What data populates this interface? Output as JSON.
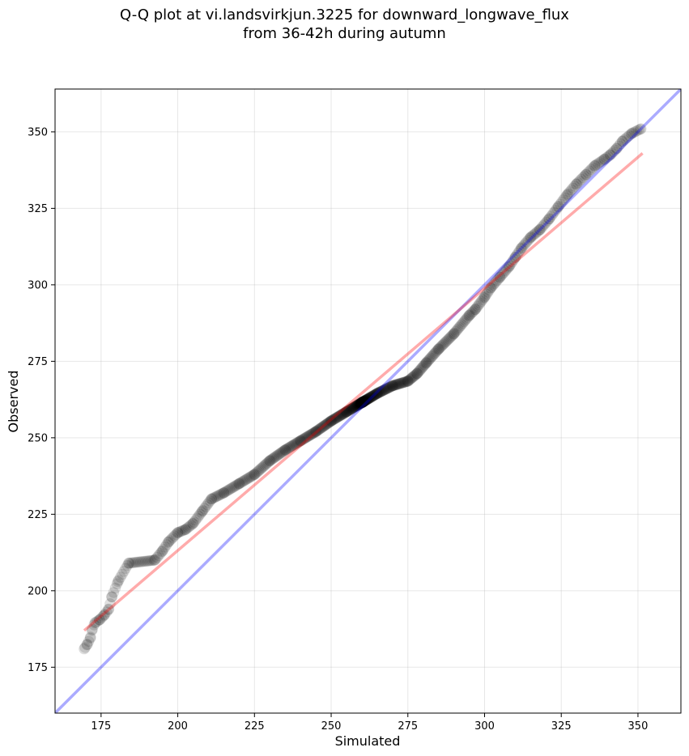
{
  "figure": {
    "title_line1": "Q-Q plot at vi.landsvirkjun.3225 for downward_longwave_flux",
    "title_line2": "from 36-42h during autumn"
  },
  "chart_data": {
    "type": "scatter",
    "title": "Q-Q plot at vi.landsvirkjun.3225 for downward_longwave_flux from 36-42h during autumn",
    "xlabel": "Simulated",
    "ylabel": "Observed",
    "xlim": [
      160,
      364
    ],
    "ylim": [
      160,
      364
    ],
    "xticks": [
      175,
      200,
      225,
      250,
      275,
      300,
      325,
      350
    ],
    "yticks": [
      175,
      200,
      225,
      250,
      275,
      300,
      325,
      350
    ],
    "grid": true,
    "colors": {
      "points": "#000000",
      "identity_line": "#aaaaff",
      "fit_line": "#f4a7a7"
    },
    "identity_line": {
      "x": [
        160,
        364
      ],
      "y": [
        160,
        364
      ]
    },
    "fit_line": {
      "x": [
        169.5,
        351.5
      ],
      "y": [
        187,
        343
      ]
    },
    "qq_curve": {
      "x": [
        169.5,
        170.5,
        171.5,
        172,
        173,
        174.5,
        176,
        177.5,
        178.5,
        180.5,
        184,
        192.5,
        195,
        197,
        200,
        202.5,
        205,
        208,
        211,
        215,
        220,
        225,
        230,
        235,
        240,
        245,
        250,
        255,
        260,
        265,
        270,
        275,
        278,
        281,
        285,
        290,
        295,
        297,
        300,
        302,
        305,
        308,
        310,
        312,
        315,
        318,
        321,
        324,
        327,
        330,
        333,
        336,
        339,
        341,
        343,
        345,
        348,
        351
      ],
      "y": [
        181,
        182.5,
        184.5,
        187,
        189.5,
        190.5,
        192,
        194,
        198,
        203,
        209,
        210,
        213,
        216,
        219,
        220,
        222,
        226,
        230,
        232,
        235,
        238,
        242.5,
        246,
        249,
        252,
        255.5,
        258.5,
        261.5,
        264.5,
        267,
        268.5,
        271,
        274.5,
        279,
        284,
        290,
        292,
        296,
        299,
        302.5,
        306,
        309,
        312,
        315.5,
        318,
        321.5,
        325.5,
        329.5,
        333,
        336,
        339,
        341,
        342.5,
        344.5,
        347,
        349.5,
        351
      ]
    },
    "n_points": 520
  }
}
